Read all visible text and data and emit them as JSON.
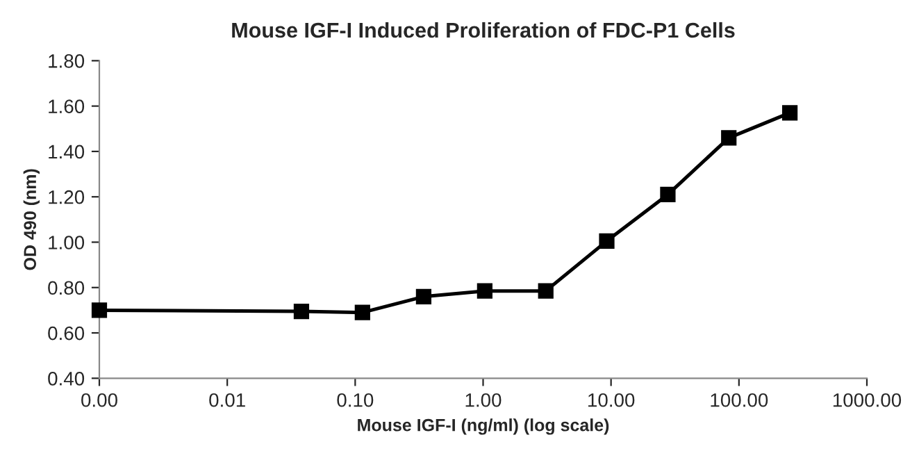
{
  "chart_data": {
    "type": "line",
    "title": "Mouse IGF-I Induced Proliferation of FDC-P1 Cells",
    "xlabel": "Mouse IGF-I (ng/ml) (log scale)",
    "ylabel": "OD 490 (nm)",
    "log": "x",
    "x": [
      0.001,
      0.038,
      0.114,
      0.343,
      1.03,
      3.09,
      9.26,
      27.8,
      83.3,
      250
    ],
    "series": [
      {
        "color": "#000000",
        "values": [
          0.7,
          0.695,
          0.69,
          0.76,
          0.785,
          0.785,
          1.005,
          1.21,
          1.46,
          1.57
        ]
      }
    ],
    "xlim": [
      0.001,
      1000
    ],
    "xticks": [
      {
        "value": 0.001,
        "label": "0.00"
      },
      {
        "value": 0.01,
        "label": "0.01"
      },
      {
        "value": 0.1,
        "label": "0.10"
      },
      {
        "value": 1,
        "label": "1.00"
      },
      {
        "value": 10,
        "label": "10.00"
      },
      {
        "value": 100,
        "label": "100.00"
      },
      {
        "value": 1000,
        "label": "1000.00"
      }
    ],
    "ylim": [
      0.4,
      1.8
    ],
    "yticks": [
      {
        "value": 0.4,
        "label": "0.40"
      },
      {
        "value": 0.6,
        "label": "0.60"
      },
      {
        "value": 0.8,
        "label": "0.80"
      },
      {
        "value": 1.0,
        "label": "1.00"
      },
      {
        "value": 1.2,
        "label": "1.20"
      },
      {
        "value": 1.4,
        "label": "1.40"
      },
      {
        "value": 1.6,
        "label": "1.60"
      },
      {
        "value": 1.8,
        "label": "1.80"
      }
    ],
    "marker": "square",
    "line_style": "solid",
    "grid": false,
    "legend": false
  }
}
